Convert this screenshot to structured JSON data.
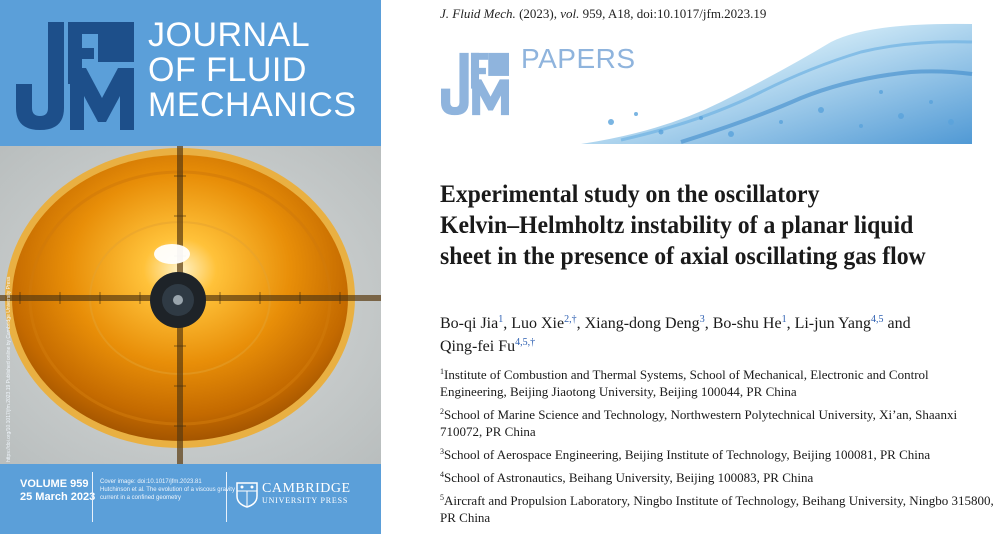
{
  "cover": {
    "brand_letters": "JFM",
    "title_lines": [
      "JOURNAL",
      "OF FLUID",
      "MECHANICS"
    ],
    "volume": "VOLUME 959",
    "date": "25 March 2023",
    "credit_lines": [
      "Cover image: doi:10.1017/jfm.2023.81",
      "Hutchinson et al. The evolution of a viscous gravity",
      "current in a confined geometry"
    ],
    "publisher_line1": "CAMBRIDGE",
    "publisher_line2": "UNIVERSITY PRESS",
    "side_text": "https://doi.org/10.1017/jfm.2023.19  Published online by Cambridge University Press"
  },
  "paper": {
    "citation_journal": "J. Fluid Mech.",
    "citation_year": "(2023),",
    "citation_vol": "vol.",
    "citation_rest": "959, A18, doi:10.1017/jfm.2023.19",
    "section_label": "PAPERS",
    "title_lines": [
      "Experimental study on the oscillatory",
      "Kelvin–Helmholtz instability of a planar liquid",
      "sheet in the presence of axial oscillating gas flow"
    ],
    "authors": [
      {
        "name": "Bo-qi Jia",
        "sup": "1"
      },
      {
        "name": "Luo Xie",
        "sup": "2,†"
      },
      {
        "name": "Xiang-dong Deng",
        "sup": "3"
      },
      {
        "name": "Bo-shu He",
        "sup": "1"
      },
      {
        "name": "Li-jun Yang",
        "sup": "4,5"
      },
      {
        "name": "Qing-fei Fu",
        "sup": "4,5,†"
      }
    ],
    "and_word": "and",
    "affiliations": [
      {
        "num": "1",
        "lines": [
          "Institute of Combustion and Thermal Systems, School of Mechanical, Electronic and Control",
          "Engineering, Beijing Jiaotong University, Beijing 100044, PR China"
        ]
      },
      {
        "num": "2",
        "lines": [
          "School of Marine Science and Technology, Northwestern Polytechnical University, Xi’an, Shaanxi",
          "710072, PR China"
        ]
      },
      {
        "num": "3",
        "lines": [
          "School of Aerospace Engineering, Beijing Institute of Technology, Beijing 100081, PR China"
        ]
      },
      {
        "num": "4",
        "lines": [
          "School of Astronautics, Beihang University, Beijing 100083, PR China"
        ]
      },
      {
        "num": "5",
        "lines": [
          "Aircraft and Propulsion Laboratory, Ningbo Institute of Technology, Beihang University, Ningbo 315800,",
          "PR China"
        ]
      }
    ]
  },
  "colors": {
    "cover_blue": "#5b9fd9",
    "jfm_dark": "#1d4f8a",
    "papers_blue": "#8fb4dd",
    "link_blue": "#2a5db0"
  }
}
